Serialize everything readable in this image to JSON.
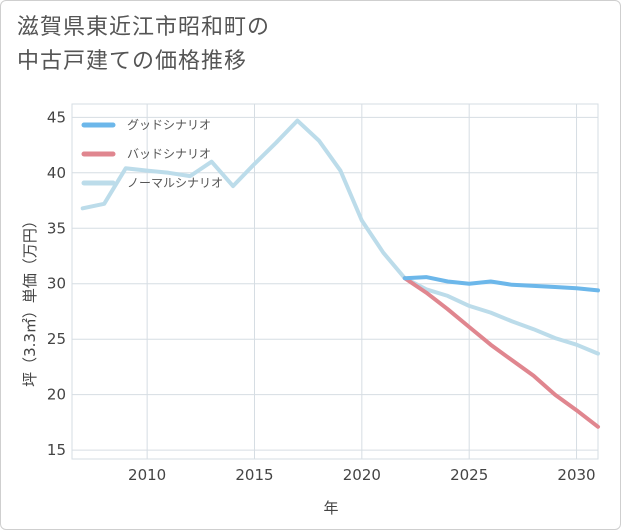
{
  "title_line1": "滋賀県東近江市昭和町の",
  "title_line2": "中古戸建ての価格推移",
  "chart_data": {
    "type": "line",
    "xlabel": "年",
    "ylabel": "坪（3.3㎡）単価（万円）",
    "xlim": [
      2006.5,
      2031
    ],
    "ylim": [
      14.2,
      46.2
    ],
    "xticks": [
      2010,
      2015,
      2020,
      2025,
      2030
    ],
    "yticks": [
      15,
      20,
      25,
      30,
      35,
      40,
      45
    ],
    "grid": true,
    "legend_position": "top-left",
    "series": [
      {
        "name": "グッドシナリオ",
        "color": "#6cb7ea",
        "x": [
          2022,
          2023,
          2024,
          2025,
          2026,
          2027,
          2028,
          2029,
          2030,
          2031
        ],
        "y": [
          30.5,
          30.6,
          30.2,
          30.0,
          30.2,
          29.9,
          29.8,
          29.7,
          29.6,
          29.4
        ]
      },
      {
        "name": "バッドシナリオ",
        "color": "#e0868f",
        "x": [
          2022,
          2023,
          2024,
          2025,
          2026,
          2027,
          2028,
          2029,
          2030,
          2031
        ],
        "y": [
          30.5,
          29.2,
          27.7,
          26.1,
          24.5,
          23.1,
          21.7,
          20.0,
          18.6,
          17.1
        ]
      },
      {
        "name": "ノーマルシナリオ",
        "color": "#bcdcea",
        "x": [
          2007,
          2008,
          2009,
          2010,
          2011,
          2012,
          2013,
          2014,
          2015,
          2016,
          2017,
          2018,
          2019,
          2020,
          2021,
          2022,
          2023,
          2024,
          2025,
          2026,
          2027,
          2028,
          2029,
          2030,
          2031
        ],
        "y": [
          36.8,
          37.2,
          40.4,
          40.2,
          40.0,
          39.7,
          41.0,
          38.8,
          40.8,
          42.7,
          44.7,
          42.9,
          40.2,
          35.7,
          32.8,
          30.5,
          29.5,
          28.9,
          28.0,
          27.4,
          26.6,
          25.9,
          25.1,
          24.5,
          23.7
        ]
      }
    ]
  }
}
